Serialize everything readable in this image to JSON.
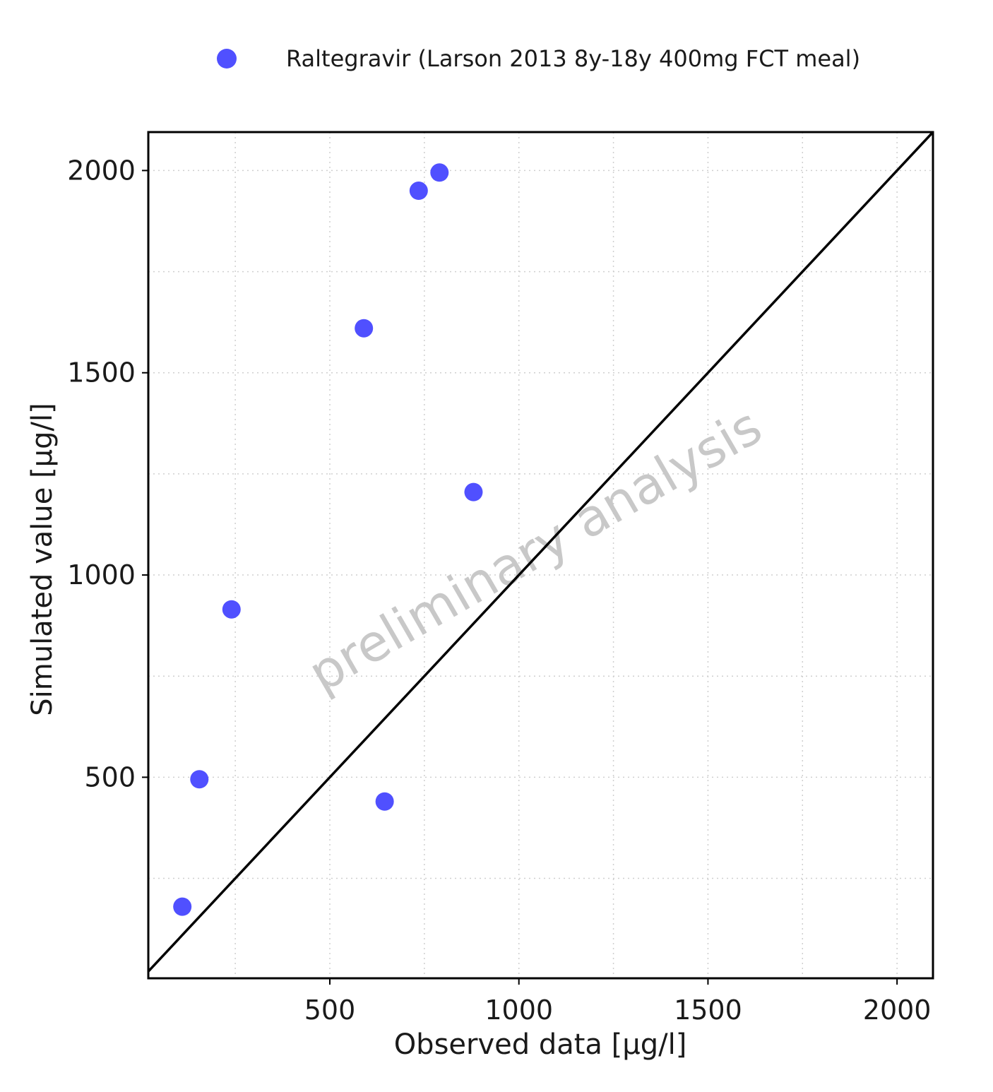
{
  "chart_data": {
    "type": "scatter",
    "series": [
      {
        "name": "Raltegravir (Larson 2013 8y-18y 400mg FCT meal)",
        "color": "#5050ff",
        "x": [
          110,
          155,
          240,
          590,
          645,
          735,
          790,
          880
        ],
        "y": [
          180,
          495,
          915,
          1610,
          440,
          1950,
          1995,
          1205
        ]
      }
    ],
    "xlabel": "Observed data [µg/l]",
    "ylabel": "Simulated value [µg/l]",
    "xlim": [
      20,
      2095
    ],
    "ylim": [
      3,
      2095
    ],
    "xticks": [
      500,
      1000,
      1500,
      2000
    ],
    "xtick_labels": [
      "500",
      "1000",
      "1500",
      "2000"
    ],
    "yticks": [
      500,
      1000,
      1500,
      2000
    ],
    "ytick_labels": [
      "500",
      "1000",
      "1500",
      "2000"
    ],
    "minor_grid": [
      250,
      750,
      1250,
      1750
    ],
    "grid": true,
    "identity_line": true,
    "legend_position": "top",
    "watermark": "preliminary analysis"
  }
}
